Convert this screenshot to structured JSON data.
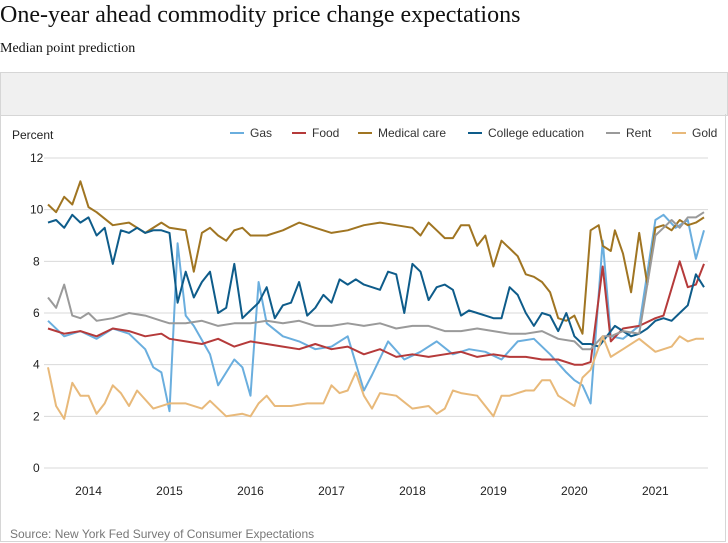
{
  "header": {
    "title": "One-year ahead commodity price change expectations",
    "subtitle": "Median point prediction"
  },
  "source": "Source: New York Fed Survey of Consumer Expectations",
  "chart_data": {
    "type": "line",
    "title": "One-year ahead commodity price change expectations",
    "subtitle": "Median point prediction",
    "ylabel": "Percent",
    "xlabel": "",
    "ylim": [
      0,
      12
    ],
    "xlim": [
      2013.45,
      2021.65
    ],
    "grid": true,
    "legend_position": "top",
    "yticks": [
      0,
      2,
      4,
      6,
      8,
      10,
      12
    ],
    "xticks": [
      2014,
      2015,
      2016,
      2017,
      2018,
      2019,
      2020,
      2021
    ],
    "series": [
      {
        "name": "Gas",
        "color": "#6aaede",
        "x": [
          2013.5,
          2013.7,
          2013.9,
          2014.1,
          2014.3,
          2014.5,
          2014.7,
          2014.8,
          2014.9,
          2015.0,
          2015.1,
          2015.2,
          2015.3,
          2015.5,
          2015.6,
          2015.8,
          2015.9,
          2016.0,
          2016.1,
          2016.2,
          2016.4,
          2016.6,
          2016.8,
          2017.0,
          2017.2,
          2017.4,
          2017.5,
          2017.7,
          2017.9,
          2018.1,
          2018.3,
          2018.5,
          2018.7,
          2018.9,
          2019.1,
          2019.3,
          2019.5,
          2019.7,
          2019.9,
          2020.0,
          2020.1,
          2020.2,
          2020.35,
          2020.45,
          2020.6,
          2020.8,
          2021.0,
          2021.1,
          2021.25,
          2021.4,
          2021.5,
          2021.6
        ],
        "values": [
          5.7,
          5.1,
          5.3,
          5.0,
          5.4,
          5.2,
          4.6,
          3.9,
          3.7,
          2.2,
          8.7,
          5.9,
          5.5,
          4.4,
          3.2,
          4.2,
          3.9,
          2.8,
          7.2,
          5.6,
          5.1,
          4.9,
          4.6,
          4.7,
          5.1,
          3.0,
          3.6,
          4.9,
          4.2,
          4.5,
          4.9,
          4.4,
          4.6,
          4.5,
          4.2,
          4.9,
          5.0,
          4.4,
          3.7,
          3.4,
          3.2,
          2.5,
          8.8,
          5.1,
          5.0,
          5.5,
          9.6,
          9.8,
          9.3,
          9.6,
          8.1,
          9.2
        ]
      },
      {
        "name": "Food",
        "color": "#b53a3a",
        "x": [
          2013.5,
          2013.7,
          2013.9,
          2014.1,
          2014.3,
          2014.5,
          2014.7,
          2014.9,
          2015.0,
          2015.2,
          2015.4,
          2015.6,
          2015.8,
          2016.0,
          2016.2,
          2016.4,
          2016.6,
          2016.8,
          2017.0,
          2017.2,
          2017.4,
          2017.6,
          2017.8,
          2018.0,
          2018.2,
          2018.4,
          2018.6,
          2018.8,
          2019.0,
          2019.2,
          2019.4,
          2019.6,
          2019.8,
          2020.0,
          2020.1,
          2020.2,
          2020.35,
          2020.45,
          2020.6,
          2020.8,
          2021.0,
          2021.1,
          2021.3,
          2021.4,
          2021.5,
          2021.6
        ],
        "values": [
          5.4,
          5.2,
          5.3,
          5.1,
          5.4,
          5.3,
          5.1,
          5.2,
          5.0,
          4.9,
          4.8,
          5.0,
          4.7,
          4.9,
          4.8,
          4.7,
          4.6,
          4.8,
          4.6,
          4.7,
          4.4,
          4.6,
          4.3,
          4.4,
          4.3,
          4.4,
          4.5,
          4.3,
          4.4,
          4.3,
          4.3,
          4.2,
          4.2,
          4.0,
          4.0,
          4.1,
          7.8,
          4.9,
          5.4,
          5.5,
          5.8,
          5.9,
          8.0,
          7.0,
          7.1,
          7.9
        ]
      },
      {
        "name": "Medical care",
        "color": "#a07522",
        "x": [
          2013.5,
          2013.6,
          2013.7,
          2013.8,
          2013.9,
          2014.0,
          2014.1,
          2014.3,
          2014.5,
          2014.7,
          2014.9,
          2015.0,
          2015.2,
          2015.3,
          2015.4,
          2015.5,
          2015.6,
          2015.7,
          2015.8,
          2015.9,
          2016.0,
          2016.2,
          2016.4,
          2016.6,
          2016.8,
          2017.0,
          2017.2,
          2017.4,
          2017.6,
          2017.8,
          2018.0,
          2018.1,
          2018.2,
          2018.3,
          2018.4,
          2018.5,
          2018.6,
          2018.7,
          2018.8,
          2018.9,
          2019.0,
          2019.1,
          2019.2,
          2019.3,
          2019.4,
          2019.5,
          2019.6,
          2019.7,
          2019.8,
          2019.9,
          2020.0,
          2020.1,
          2020.2,
          2020.3,
          2020.35,
          2020.45,
          2020.5,
          2020.6,
          2020.7,
          2020.8,
          2020.9,
          2021.0,
          2021.1,
          2021.2,
          2021.3,
          2021.4,
          2021.5,
          2021.6
        ],
        "values": [
          10.2,
          9.9,
          10.5,
          10.2,
          11.1,
          10.1,
          9.9,
          9.4,
          9.5,
          9.1,
          9.5,
          9.3,
          9.2,
          7.6,
          9.1,
          9.3,
          9.0,
          8.8,
          9.2,
          9.3,
          9.0,
          9.0,
          9.2,
          9.5,
          9.3,
          9.1,
          9.2,
          9.4,
          9.5,
          9.4,
          9.3,
          9.0,
          9.5,
          9.2,
          8.9,
          8.9,
          9.4,
          9.4,
          8.6,
          9.0,
          7.8,
          8.8,
          8.5,
          8.2,
          7.5,
          7.4,
          7.2,
          6.8,
          5.8,
          5.7,
          5.9,
          5.2,
          9.2,
          9.4,
          8.6,
          8.4,
          9.2,
          8.3,
          6.8,
          9.1,
          7.1,
          9.3,
          9.4,
          9.2,
          9.6,
          9.4,
          9.5,
          9.7
        ]
      },
      {
        "name": "College education",
        "color": "#0e5c8a",
        "x": [
          2013.5,
          2013.6,
          2013.7,
          2013.8,
          2013.9,
          2014.0,
          2014.1,
          2014.2,
          2014.3,
          2014.4,
          2014.5,
          2014.6,
          2014.7,
          2014.8,
          2014.9,
          2015.0,
          2015.1,
          2015.2,
          2015.3,
          2015.4,
          2015.5,
          2015.6,
          2015.7,
          2015.8,
          2015.9,
          2016.0,
          2016.1,
          2016.2,
          2016.3,
          2016.4,
          2016.5,
          2016.6,
          2016.7,
          2016.8,
          2016.9,
          2017.0,
          2017.1,
          2017.2,
          2017.3,
          2017.4,
          2017.5,
          2017.6,
          2017.7,
          2017.8,
          2017.9,
          2018.0,
          2018.1,
          2018.2,
          2018.3,
          2018.4,
          2018.5,
          2018.6,
          2018.7,
          2018.8,
          2018.9,
          2019.0,
          2019.1,
          2019.2,
          2019.3,
          2019.4,
          2019.5,
          2019.6,
          2019.7,
          2019.8,
          2019.9,
          2020.0,
          2020.1,
          2020.2,
          2020.3,
          2020.4,
          2020.5,
          2020.6,
          2020.7,
          2020.8,
          2020.9,
          2021.0,
          2021.1,
          2021.2,
          2021.3,
          2021.4,
          2021.5,
          2021.6
        ],
        "values": [
          9.5,
          9.6,
          9.3,
          9.8,
          9.5,
          9.7,
          9.0,
          9.3,
          7.9,
          9.2,
          9.1,
          9.3,
          9.1,
          9.2,
          9.2,
          9.1,
          6.4,
          7.6,
          6.6,
          7.2,
          7.6,
          6.0,
          6.2,
          7.9,
          5.8,
          6.1,
          6.4,
          7.0,
          5.8,
          6.3,
          6.4,
          7.2,
          5.9,
          6.2,
          6.7,
          6.4,
          7.3,
          7.1,
          7.3,
          7.1,
          7.0,
          6.9,
          7.6,
          7.5,
          6.0,
          7.9,
          7.6,
          6.5,
          7.0,
          7.1,
          6.9,
          5.9,
          6.1,
          6.0,
          5.9,
          5.8,
          5.8,
          7.0,
          6.7,
          6.0,
          5.5,
          6.0,
          5.9,
          5.3,
          6.0,
          5.1,
          4.8,
          4.8,
          4.7,
          5.1,
          5.5,
          5.3,
          5.1,
          5.2,
          5.4,
          5.7,
          5.8,
          5.7,
          6.0,
          6.3,
          7.5,
          7.0
        ]
      },
      {
        "name": "Rent",
        "color": "#9a9a9a",
        "x": [
          2013.5,
          2013.6,
          2013.7,
          2013.8,
          2013.9,
          2014.0,
          2014.1,
          2014.3,
          2014.5,
          2014.7,
          2014.9,
          2015.0,
          2015.2,
          2015.4,
          2015.6,
          2015.8,
          2016.0,
          2016.2,
          2016.4,
          2016.6,
          2016.8,
          2017.0,
          2017.2,
          2017.4,
          2017.6,
          2017.8,
          2018.0,
          2018.2,
          2018.4,
          2018.6,
          2018.8,
          2019.0,
          2019.2,
          2019.4,
          2019.6,
          2019.8,
          2020.0,
          2020.1,
          2020.2,
          2020.35,
          2020.45,
          2020.6,
          2020.8,
          2021.0,
          2021.1,
          2021.2,
          2021.3,
          2021.4,
          2021.5,
          2021.6
        ],
        "values": [
          6.6,
          6.2,
          7.1,
          5.9,
          5.8,
          6.0,
          5.7,
          5.8,
          6.0,
          5.9,
          5.7,
          5.6,
          5.6,
          5.7,
          5.5,
          5.6,
          5.6,
          5.7,
          5.6,
          5.7,
          5.5,
          5.5,
          5.6,
          5.5,
          5.6,
          5.4,
          5.5,
          5.5,
          5.3,
          5.3,
          5.4,
          5.3,
          5.2,
          5.2,
          5.3,
          5.0,
          4.9,
          4.6,
          4.6,
          5.1,
          5.1,
          5.3,
          5.2,
          9.0,
          9.3,
          9.6,
          9.3,
          9.7,
          9.7,
          9.9
        ]
      },
      {
        "name": "Gold",
        "color": "#e8b97a",
        "x": [
          2013.5,
          2013.6,
          2013.7,
          2013.8,
          2013.9,
          2014.0,
          2014.1,
          2014.2,
          2014.3,
          2014.4,
          2014.5,
          2014.6,
          2014.8,
          2015.0,
          2015.1,
          2015.2,
          2015.4,
          2015.5,
          2015.7,
          2015.9,
          2016.0,
          2016.1,
          2016.2,
          2016.3,
          2016.5,
          2016.7,
          2016.9,
          2017.0,
          2017.1,
          2017.2,
          2017.3,
          2017.4,
          2017.5,
          2017.6,
          2017.8,
          2018.0,
          2018.2,
          2018.3,
          2018.4,
          2018.5,
          2018.6,
          2018.8,
          2019.0,
          2019.1,
          2019.2,
          2019.3,
          2019.4,
          2019.5,
          2019.6,
          2019.7,
          2019.8,
          2019.9,
          2020.0,
          2020.1,
          2020.2,
          2020.35,
          2020.45,
          2020.6,
          2020.8,
          2021.0,
          2021.1,
          2021.2,
          2021.3,
          2021.4,
          2021.5,
          2021.6
        ],
        "values": [
          3.9,
          2.4,
          1.9,
          3.3,
          2.8,
          2.8,
          2.1,
          2.5,
          3.2,
          2.9,
          2.4,
          3.0,
          2.3,
          2.5,
          2.5,
          2.5,
          2.3,
          2.6,
          2.0,
          2.1,
          2.0,
          2.5,
          2.8,
          2.4,
          2.4,
          2.5,
          2.5,
          3.2,
          2.9,
          3.0,
          3.7,
          2.8,
          2.3,
          2.9,
          2.8,
          2.3,
          2.4,
          2.1,
          2.3,
          3.0,
          2.9,
          2.8,
          2.0,
          2.8,
          2.8,
          2.9,
          3.0,
          3.0,
          3.4,
          3.4,
          2.8,
          2.6,
          2.4,
          3.5,
          3.8,
          5.1,
          4.3,
          4.6,
          5.0,
          4.5,
          4.6,
          4.7,
          5.1,
          4.9,
          5.0,
          5.0
        ]
      }
    ]
  }
}
